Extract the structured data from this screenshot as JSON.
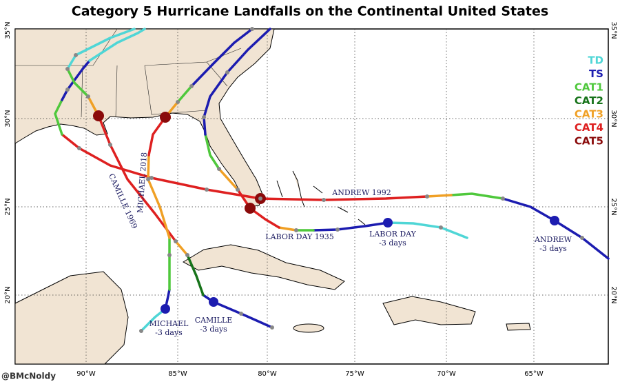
{
  "title": "Category 5 Hurricane Landfalls on the Continental United States",
  "legend": [
    {
      "label": "TD",
      "color": "#4fd6d6"
    },
    {
      "label": "TS",
      "color": "#1c1cb0"
    },
    {
      "label": "CAT1",
      "color": "#4fc83c"
    },
    {
      "label": "CAT2",
      "color": "#17731a"
    },
    {
      "label": "CAT3",
      "color": "#f0a025"
    },
    {
      "label": "CAT4",
      "color": "#de2020"
    },
    {
      "label": "CAT5",
      "color": "#8a0a0a"
    }
  ],
  "lon_labels": [
    "90°W",
    "85°W",
    "80°W",
    "75°W",
    "70°W",
    "65°W"
  ],
  "lat_labels": [
    "35°N",
    "30°N",
    "25°N",
    "20°N"
  ],
  "storm_labels": [
    "ANDREW 1992",
    "LABOR DAY 1935",
    "CAMILLE 1969",
    "MICHAEL 2018"
  ],
  "forecast_labels": [
    [
      "LABOR DAY",
      "-3 days"
    ],
    [
      "ANDREW",
      "-3 days"
    ],
    [
      "MICHAEL",
      "-3 days"
    ],
    [
      "CAMILLE",
      "-3 days"
    ]
  ],
  "credit": "@BMcNoldy"
}
